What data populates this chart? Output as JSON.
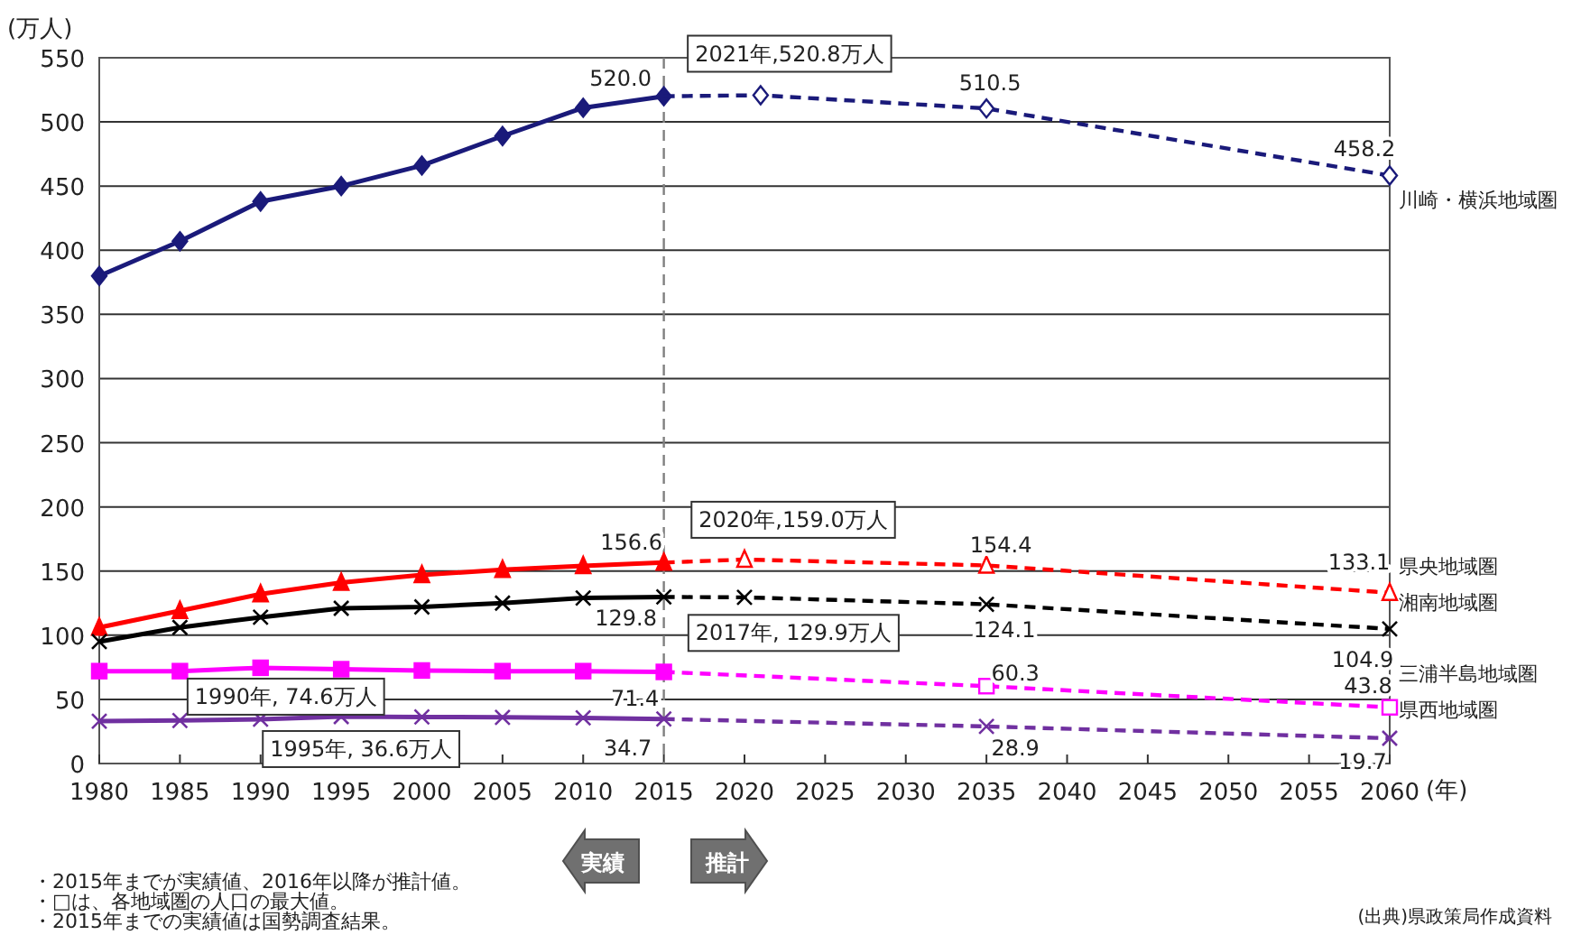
{
  "chart_data": {
    "type": "line",
    "xlabel": "(年)",
    "ylabel": "(万人)",
    "xlim": [
      1980,
      2060
    ],
    "xticks": [
      1980,
      1985,
      1990,
      1995,
      2000,
      2005,
      2010,
      2015,
      2020,
      2025,
      2030,
      2035,
      2040,
      2045,
      2050,
      2055,
      2060
    ],
    "ylim": [
      0,
      550
    ],
    "yticks": [
      0,
      50,
      100,
      150,
      200,
      250,
      300,
      350,
      400,
      450,
      500,
      550
    ],
    "grid": "y",
    "series": [
      {
        "color": "#1a1a7a",
        "marker": "diamond",
        "line_style": "solid",
        "x": [
          1980,
          1985,
          1990,
          1995,
          2000,
          2005,
          2010,
          2015
        ],
        "values": [
          380,
          407,
          438,
          450,
          466,
          489,
          511,
          520.0
        ],
        "value_labels": [
          null,
          null,
          null,
          null,
          null,
          null,
          null,
          "520.0"
        ]
      },
      {
        "name": "川崎・横浜地域圏",
        "color": "#1a1a7a",
        "marker": "diamond",
        "line_style": "dashed",
        "x": [
          2015,
          2021,
          2035,
          2060
        ],
        "values": [
          520.0,
          520.8,
          510.5,
          458.2
        ],
        "value_labels": [
          null,
          null,
          "510.5",
          "458.2"
        ]
      },
      {
        "color": "#ff0000",
        "marker": "triangle",
        "line_style": "solid",
        "x": [
          1980,
          1985,
          1990,
          1995,
          2000,
          2005,
          2010,
          2015
        ],
        "values": [
          106,
          119,
          132,
          141,
          147,
          151,
          154,
          156.6
        ],
        "value_labels": [
          null,
          null,
          null,
          null,
          null,
          null,
          null,
          "156.6"
        ]
      },
      {
        "name": "県央地域圏",
        "color": "#ff0000",
        "marker": "triangle",
        "line_style": "dashed",
        "x": [
          2015,
          2020,
          2035,
          2060
        ],
        "values": [
          156.6,
          159.0,
          154.4,
          133.1
        ],
        "value_labels": [
          null,
          null,
          "154.4",
          "133.1"
        ]
      },
      {
        "color": "#000000",
        "marker": "cross",
        "line_style": "solid",
        "x": [
          1980,
          1985,
          1990,
          1995,
          2000,
          2005,
          2010,
          2015
        ],
        "values": [
          95,
          106,
          114,
          121,
          122,
          125,
          129,
          129.8
        ],
        "value_labels": [
          null,
          null,
          null,
          null,
          null,
          null,
          null,
          "129.8"
        ]
      },
      {
        "name": "湘南地域圏",
        "color": "#000000",
        "marker": "cross",
        "line_style": "dashed",
        "x": [
          2015,
          2020,
          2035,
          2060
        ],
        "values": [
          129.8,
          129.5,
          124.1,
          104.9
        ],
        "value_labels": [
          null,
          null,
          "124.1",
          "104.9"
        ]
      },
      {
        "color": "#ff00ff",
        "marker": "square",
        "line_style": "solid",
        "x": [
          1980,
          1985,
          1990,
          1995,
          2000,
          2005,
          2010,
          2015
        ],
        "values": [
          72,
          72,
          74.6,
          73.5,
          72.5,
          72,
          72,
          71.4
        ],
        "value_labels": [
          null,
          null,
          null,
          null,
          null,
          null,
          null,
          "71.4"
        ]
      },
      {
        "name": "三浦半島地域圏",
        "color": "#ff00ff",
        "marker": "square",
        "line_style": "dashed",
        "x": [
          2015,
          2035,
          2060
        ],
        "values": [
          71.4,
          60.3,
          43.8
        ],
        "value_labels": [
          null,
          "60.3",
          "43.8"
        ]
      },
      {
        "color": "#7030a0",
        "marker": "cross",
        "line_style": "solid",
        "x": [
          1980,
          1985,
          1990,
          1995,
          2000,
          2005,
          2010,
          2015
        ],
        "values": [
          33,
          33.5,
          34.5,
          36.6,
          36.3,
          36.0,
          35.6,
          34.7
        ],
        "value_labels": [
          null,
          null,
          null,
          null,
          null,
          null,
          null,
          "34.7"
        ]
      },
      {
        "name": "県西地域圏",
        "color": "#7030a0",
        "marker": "cross",
        "line_style": "dashed",
        "x": [
          2015,
          2035,
          2060
        ],
        "values": [
          34.7,
          28.9,
          19.7
        ],
        "value_labels": [
          null,
          "28.9",
          "19.7"
        ]
      }
    ],
    "ref_lines": [
      {
        "axis": "x",
        "value": 2015,
        "color": "#808080",
        "line_style": "dashed"
      }
    ],
    "annotations": [
      {
        "text": "2021年,520.8万人",
        "x": 2021,
        "y": 520.8
      },
      {
        "text": "2020年,159.0万人",
        "x": 2020,
        "y": 159.0
      },
      {
        "text": "2017年, 129.9万人",
        "x": 2017,
        "y": 129.9
      },
      {
        "text": "1990年, 74.6万人",
        "x": 1990,
        "y": 74.6
      },
      {
        "text": "1995年, 36.6万人",
        "x": 1995,
        "y": 36.6
      },
      "実績",
      "推計",
      "・2015年までが実績値、2016年以降が推計値。",
      "・□は、各地域圏の人口の最大値。",
      "・2015年までの実績値は国勢調査結果。",
      "(出典)県政策局作成資料"
    ]
  }
}
